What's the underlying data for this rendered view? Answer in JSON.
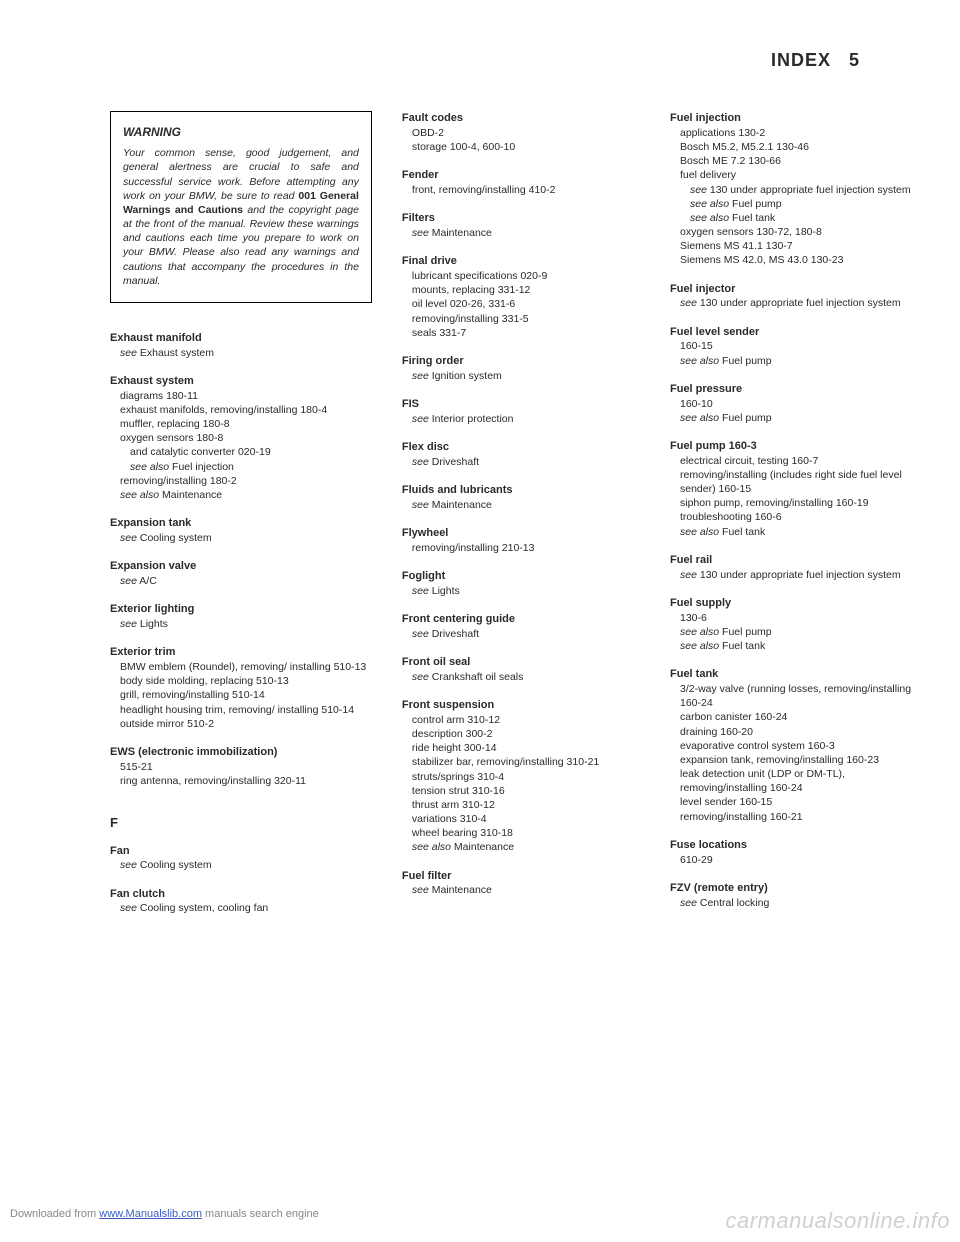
{
  "header": {
    "title": "INDEX",
    "page": "5"
  },
  "warning": {
    "title": "WARNING",
    "text_pre": "Your common sense, good judgement, and general alertness are crucial to safe and successful service work. Before attempting any work on your BMW, be sure to read ",
    "bold1": "001 General Warnings and Cautions",
    "text_post": " and the copyright page at the front of the manual. Review these warnings and cautions each time you prepare to work on your BMW. Please also read any warnings and cautions that accompany the procedures in the manual."
  },
  "col1": [
    {
      "hd": "Exhaust manifold",
      "subs": [
        {
          "t": "see Exhaust system",
          "see": true
        }
      ]
    },
    {
      "hd": "Exhaust system",
      "subs": [
        {
          "t": "diagrams 180-11"
        },
        {
          "t": "exhaust manifolds, removing/installing 180-4"
        },
        {
          "t": "muffler, replacing 180-8"
        },
        {
          "t": "oxygen sensors 180-8"
        },
        {
          "t": "and catalytic converter 020-19",
          "indent": 2
        },
        {
          "t": "see also Fuel injection",
          "see": true,
          "indent": 2
        },
        {
          "t": "removing/installing 180-2"
        },
        {
          "t": "see also Maintenance",
          "see": true
        }
      ]
    },
    {
      "hd": "Expansion tank",
      "subs": [
        {
          "t": "see Cooling system",
          "see": true
        }
      ]
    },
    {
      "hd": "Expansion valve",
      "subs": [
        {
          "t": "see A/C",
          "see": true
        }
      ]
    },
    {
      "hd": "Exterior lighting",
      "subs": [
        {
          "t": "see Lights",
          "see": true
        }
      ]
    },
    {
      "hd": "Exterior trim",
      "subs": [
        {
          "t": "BMW emblem (Roundel), removing/ installing 510-13"
        },
        {
          "t": "body side molding, replacing 510-13"
        },
        {
          "t": "grill, removing/installing 510-14"
        },
        {
          "t": "headlight housing trim, removing/ installing 510-14"
        },
        {
          "t": "outside mirror 510-2"
        }
      ]
    },
    {
      "hd": "EWS (electronic immobilization)",
      "subs": [
        {
          "t": "515-21"
        },
        {
          "t": "ring antenna, removing/installing 320-11"
        }
      ]
    }
  ],
  "col1_section": "F",
  "col1_f": [
    {
      "hd": "Fan",
      "subs": [
        {
          "t": "see Cooling system",
          "see": true
        }
      ]
    },
    {
      "hd": "Fan clutch",
      "subs": [
        {
          "t": "see Cooling system, cooling fan",
          "see": true
        }
      ]
    }
  ],
  "col2": [
    {
      "hd": "Fault codes",
      "subs": [
        {
          "t": "OBD-2"
        },
        {
          "t": "storage 100-4, 600-10"
        }
      ]
    },
    {
      "hd": "Fender",
      "subs": [
        {
          "t": "front, removing/installing 410-2"
        }
      ]
    },
    {
      "hd": "Filters",
      "subs": [
        {
          "t": "see Maintenance",
          "see": true
        }
      ]
    },
    {
      "hd": "Final drive",
      "subs": [
        {
          "t": "lubricant specifications 020-9"
        },
        {
          "t": "mounts, replacing 331-12"
        },
        {
          "t": "oil level 020-26, 331-6"
        },
        {
          "t": "removing/installing 331-5"
        },
        {
          "t": "seals 331-7"
        }
      ]
    },
    {
      "hd": "Firing order",
      "subs": [
        {
          "t": "see Ignition system",
          "see": true
        }
      ]
    },
    {
      "hd": "FIS",
      "subs": [
        {
          "t": "see Interior protection",
          "see": true
        }
      ]
    },
    {
      "hd": "Flex disc",
      "subs": [
        {
          "t": "see Driveshaft",
          "see": true
        }
      ]
    },
    {
      "hd": "Fluids and lubricants",
      "subs": [
        {
          "t": "see Maintenance",
          "see": true
        }
      ]
    },
    {
      "hd": "Flywheel",
      "subs": [
        {
          "t": "removing/installing 210-13"
        }
      ]
    },
    {
      "hd": "Foglight",
      "subs": [
        {
          "t": "see Lights",
          "see": true
        }
      ]
    },
    {
      "hd": "Front centering guide",
      "subs": [
        {
          "t": "see Driveshaft",
          "see": true
        }
      ]
    },
    {
      "hd": "Front oil seal",
      "subs": [
        {
          "t": "see Crankshaft oil seals",
          "see": true
        }
      ]
    },
    {
      "hd": "Front suspension",
      "subs": [
        {
          "t": "control arm 310-12"
        },
        {
          "t": "description 300-2"
        },
        {
          "t": "ride height 300-14"
        },
        {
          "t": "stabilizer bar, removing/installing 310-21"
        },
        {
          "t": "struts/springs 310-4"
        },
        {
          "t": "tension strut 310-16"
        },
        {
          "t": "thrust arm 310-12"
        },
        {
          "t": "variations 310-4"
        },
        {
          "t": "wheel bearing 310-18"
        },
        {
          "t": "see also Maintenance",
          "see": true
        }
      ]
    },
    {
      "hd": "Fuel filter",
      "subs": [
        {
          "t": "see Maintenance",
          "see": true
        }
      ]
    }
  ],
  "col3": [
    {
      "hd": "Fuel injection",
      "subs": [
        {
          "t": "applications 130-2"
        },
        {
          "t": "Bosch M5.2, M5.2.1 130-46"
        },
        {
          "t": "Bosch ME 7.2 130-66"
        },
        {
          "t": "fuel delivery"
        },
        {
          "t": "see 130 under appropriate fuel injection system",
          "see": true,
          "indent": 2
        },
        {
          "t": "see also Fuel pump",
          "see": true,
          "indent": 2
        },
        {
          "t": "see also Fuel tank",
          "see": true,
          "indent": 2
        },
        {
          "t": "oxygen sensors 130-72, 180-8"
        },
        {
          "t": "Siemens MS 41.1 130-7"
        },
        {
          "t": "Siemens MS 42.0, MS 43.0 130-23"
        }
      ]
    },
    {
      "hd": "Fuel injector",
      "subs": [
        {
          "t": "see 130 under appropriate fuel injection system",
          "see": true
        }
      ]
    },
    {
      "hd": "Fuel level sender",
      "subs": [
        {
          "t": "160-15"
        },
        {
          "t": "see also Fuel pump",
          "see": true
        }
      ]
    },
    {
      "hd": "Fuel pressure",
      "subs": [
        {
          "t": "160-10"
        },
        {
          "t": "see also Fuel pump",
          "see": true
        }
      ]
    },
    {
      "hd": "Fuel pump 160-3",
      "subs": [
        {
          "t": "electrical circuit, testing 160-7"
        },
        {
          "t": "removing/installing (includes right side fuel level sender) 160-15"
        },
        {
          "t": "siphon pump, removing/installing 160-19"
        },
        {
          "t": "troubleshooting 160-6"
        },
        {
          "t": "see also Fuel tank",
          "see": true
        }
      ]
    },
    {
      "hd": "Fuel rail",
      "subs": [
        {
          "t": "see 130 under appropriate fuel injection system",
          "see": true
        }
      ]
    },
    {
      "hd": "Fuel supply",
      "subs": [
        {
          "t": "130-6"
        },
        {
          "t": "see also Fuel pump",
          "see": true
        },
        {
          "t": "see also Fuel tank",
          "see": true
        }
      ]
    },
    {
      "hd": "Fuel tank",
      "subs": [
        {
          "t": "3/2-way valve (running losses, removing/installing 160-24"
        },
        {
          "t": "carbon canister 160-24"
        },
        {
          "t": "draining 160-20"
        },
        {
          "t": "evaporative control system 160-3"
        },
        {
          "t": "expansion tank, removing/installing 160-23"
        },
        {
          "t": "leak detection unit (LDP or DM-TL), removing/installing 160-24"
        },
        {
          "t": "level sender 160-15"
        },
        {
          "t": "removing/installing 160-21"
        }
      ]
    },
    {
      "hd": "Fuse locations",
      "subs": [
        {
          "t": "610-29"
        }
      ]
    },
    {
      "hd": "FZV (remote entry)",
      "subs": [
        {
          "t": "see Central locking",
          "see": true
        }
      ]
    }
  ],
  "footer": {
    "left_pre": "Downloaded from ",
    "left_link": "www.Manualslib.com",
    "left_post": " manuals search engine",
    "right": "carmanualsonline.info"
  }
}
